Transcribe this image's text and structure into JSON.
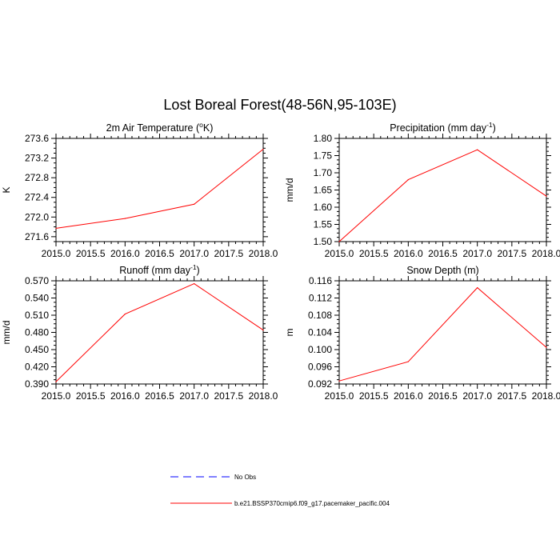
{
  "figure": {
    "title": "Lost Boreal Forest(48-56N,95-103E)"
  },
  "colors": {
    "model_line": "#ff0000",
    "obs_line": "#0000ff",
    "axes": "#000000"
  },
  "legend": {
    "entries": [
      {
        "label": "No Obs",
        "style": "dashed",
        "color": "#0000ff"
      },
      {
        "label": "b.e21.BSSP370cmip6.f09_g17.pacemaker_pacific.004",
        "style": "solid",
        "color": "#ff0000"
      }
    ]
  },
  "chart_data": [
    {
      "type": "line",
      "title": "2m Air Temperature (",
      "title_sup": "o",
      "title_end": "K)",
      "ylabel": "K",
      "xlim": [
        2015.0,
        2018.0
      ],
      "ylim": [
        271.5,
        273.6
      ],
      "xticks": [
        "2015.0",
        "2015.5",
        "2016.0",
        "2016.5",
        "2017.0",
        "2017.5",
        "2018.0"
      ],
      "yticks": [
        "271.6",
        "272.0",
        "272.4",
        "272.8",
        "273.2",
        "273.6"
      ],
      "x": [
        2015,
        2016,
        2017,
        2018
      ],
      "series": [
        {
          "name": "b.e21.BSSP370cmip6.f09_g17.pacemaker_pacific.004",
          "values": [
            271.77,
            271.97,
            272.26,
            273.38
          ]
        }
      ]
    },
    {
      "type": "line",
      "title": "Precipitation (mm day",
      "title_sup": "-1",
      "title_end": ")",
      "ylabel": "mm/d",
      "xlim": [
        2015.0,
        2018.0
      ],
      "ylim": [
        1.5,
        1.8
      ],
      "xticks": [
        "2015.0",
        "2015.5",
        "2016.0",
        "2016.5",
        "2017.0",
        "2017.5",
        "2018.0"
      ],
      "yticks": [
        "1.50",
        "1.55",
        "1.60",
        "1.65",
        "1.70",
        "1.75",
        "1.80"
      ],
      "x": [
        2015,
        2016,
        2017,
        2018
      ],
      "series": [
        {
          "name": "b.e21.BSSP370cmip6.f09_g17.pacemaker_pacific.004",
          "values": [
            1.5,
            1.68,
            1.767,
            1.632
          ]
        }
      ]
    },
    {
      "type": "line",
      "title": "Runoff (mm day",
      "title_sup": "-1",
      "title_end": ")",
      "ylabel": "mm/d",
      "xlim": [
        2015.0,
        2018.0
      ],
      "ylim": [
        0.39,
        0.57
      ],
      "xticks": [
        "2015.0",
        "2015.5",
        "2016.0",
        "2016.5",
        "2017.0",
        "2017.5",
        "2018.0"
      ],
      "yticks": [
        "0.390",
        "0.420",
        "0.450",
        "0.480",
        "0.510",
        "0.540",
        "0.570"
      ],
      "x": [
        2015,
        2016,
        2017,
        2018
      ],
      "series": [
        {
          "name": "b.e21.BSSP370cmip6.f09_g17.pacemaker_pacific.004",
          "values": [
            0.394,
            0.512,
            0.565,
            0.484
          ]
        }
      ]
    },
    {
      "type": "line",
      "title": "Snow Depth (m)",
      "title_sup": "",
      "title_end": "",
      "ylabel": "m",
      "xlim": [
        2015.0,
        2018.0
      ],
      "ylim": [
        0.092,
        0.116
      ],
      "xticks": [
        "2015.0",
        "2015.5",
        "2016.0",
        "2016.5",
        "2017.0",
        "2017.5",
        "2018.0"
      ],
      "yticks": [
        "0.092",
        "0.096",
        "0.100",
        "0.104",
        "0.108",
        "0.112",
        "0.116"
      ],
      "x": [
        2015,
        2016,
        2017,
        2018
      ],
      "series": [
        {
          "name": "b.e21.BSSP370cmip6.f09_g17.pacemaker_pacific.004",
          "values": [
            0.0927,
            0.0972,
            0.1144,
            0.1005
          ]
        }
      ]
    }
  ]
}
